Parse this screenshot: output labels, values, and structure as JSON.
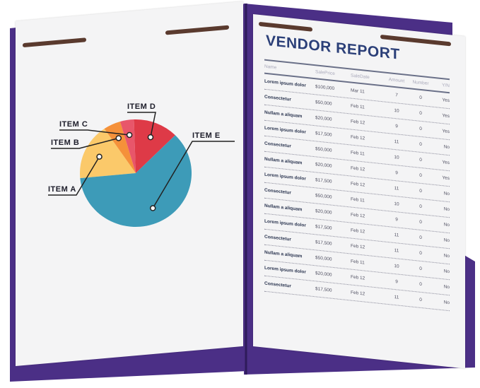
{
  "colors": {
    "folder": "#4b2f86",
    "title": "#2b3f78",
    "item_a": "#fbc96a",
    "item_b": "#f5913a",
    "item_c": "#e8566a",
    "item_d": "#de3a47",
    "item_e": "#3d9bb8"
  },
  "chart": {
    "labels": [
      "ITEM A",
      "ITEM B",
      "ITEM C",
      "ITEM D",
      "ITEM E"
    ],
    "values": [
      17,
      5,
      4,
      13,
      61
    ]
  },
  "report": {
    "title": "VENDOR REPORT",
    "headers": [
      "Name",
      "SalePrice",
      "SaleDate",
      "Amount",
      "Number",
      "Y/N"
    ],
    "rows": [
      [
        "Lorem ipsum dolor",
        "$100,000",
        "Mar 11",
        "7",
        "0",
        "Yes"
      ],
      [
        "Consectetur",
        "$50,000",
        "Feb 11",
        "10",
        "0",
        "Yes"
      ],
      [
        "Nullam a aliquam",
        "$20,000",
        "Feb 12",
        "9",
        "0",
        "Yes"
      ],
      [
        "Lorem ipsum dolor",
        "$17,500",
        "Feb 12",
        "11",
        "0",
        "No"
      ],
      [
        "Consectetur",
        "$50,000",
        "Feb 11",
        "10",
        "0",
        "Yes"
      ],
      [
        "Nullam a aliquam",
        "$20,000",
        "Feb 12",
        "9",
        "0",
        "Yes"
      ],
      [
        "Lorem ipsum dolor",
        "$17,500",
        "Feb 12",
        "11",
        "0",
        "No"
      ],
      [
        "Consectetur",
        "$50,000",
        "Feb 11",
        "10",
        "0",
        "No"
      ],
      [
        "Nullam a aliquam",
        "$20,000",
        "Feb 12",
        "9",
        "0",
        "No"
      ],
      [
        "Lorem ipsum dolor",
        "$17,500",
        "Feb 12",
        "11",
        "0",
        "No"
      ],
      [
        "Consectetur",
        "$17,500",
        "Feb 12",
        "11",
        "0",
        "No"
      ],
      [
        "Nullam a aliquam",
        "$50,000",
        "Feb 11",
        "10",
        "0",
        "No"
      ],
      [
        "Lorem ipsum dolor",
        "$20,000",
        "Feb 12",
        "9",
        "0",
        "No"
      ],
      [
        "Consectetur",
        "$17,500",
        "Feb 12",
        "11",
        "0",
        "No"
      ]
    ]
  }
}
